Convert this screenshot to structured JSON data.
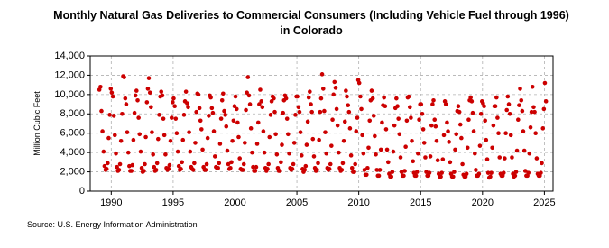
{
  "chart_data": {
    "type": "scatter",
    "title": [
      "Monthly Natural Gas Deliveries to Commercial Consumers (Including Vehicle Fuel through 1996)",
      "in Colorado"
    ],
    "y_label": "Million Cubic Feet",
    "source": "Source: U.S. Energy Information Administration",
    "color": "#cc0000",
    "grid": true,
    "xlim": [
      1988.3,
      2025.7
    ],
    "xticks": [
      1990,
      1995,
      2000,
      2005,
      2010,
      2015,
      2020,
      2025
    ],
    "ylim": [
      0,
      14000
    ],
    "yticks": [
      {
        "value": 0,
        "label": "0"
      },
      {
        "value": 2000,
        "label": "2,000"
      },
      {
        "value": 4000,
        "label": "4,000"
      },
      {
        "value": 6000,
        "label": "6,000"
      },
      {
        "value": 8000,
        "label": "8,000"
      },
      {
        "value": 10000,
        "label": "10,000"
      },
      {
        "value": 12000,
        "label": "12,000"
      },
      {
        "value": 14000,
        "label": "14,000"
      }
    ],
    "x": [
      1989.04,
      1989.13,
      1989.21,
      1989.29,
      1989.38,
      1989.46,
      1989.54,
      1989.63,
      1989.71,
      1989.79,
      1989.88,
      1989.96,
      1990.04,
      1990.13,
      1990.21,
      1990.29,
      1990.38,
      1990.46,
      1990.54,
      1990.63,
      1990.71,
      1990.79,
      1990.88,
      1990.96,
      1991.04,
      1991.13,
      1991.21,
      1991.29,
      1991.38,
      1991.46,
      1991.54,
      1991.63,
      1991.71,
      1991.79,
      1991.88,
      1991.96,
      1992.04,
      1992.13,
      1992.21,
      1992.29,
      1992.38,
      1992.46,
      1992.54,
      1992.63,
      1992.71,
      1992.79,
      1992.88,
      1992.96,
      1993.04,
      1993.13,
      1993.21,
      1993.29,
      1993.38,
      1993.46,
      1993.54,
      1993.63,
      1993.71,
      1993.79,
      1993.88,
      1993.96,
      1994.04,
      1994.13,
      1994.21,
      1994.29,
      1994.38,
      1994.46,
      1994.54,
      1994.63,
      1994.71,
      1994.79,
      1994.88,
      1994.96,
      1995.04,
      1995.13,
      1995.21,
      1995.29,
      1995.38,
      1995.46,
      1995.54,
      1995.63,
      1995.71,
      1995.79,
      1995.88,
      1995.96,
      1996.04,
      1996.13,
      1996.21,
      1996.29,
      1996.38,
      1996.46,
      1996.54,
      1996.63,
      1996.71,
      1996.79,
      1996.88,
      1996.96,
      1997.04,
      1997.13,
      1997.21,
      1997.29,
      1997.38,
      1997.46,
      1997.54,
      1997.63,
      1997.71,
      1997.79,
      1997.88,
      1997.96,
      1998.04,
      1998.13,
      1998.21,
      1998.29,
      1998.38,
      1998.46,
      1998.54,
      1998.63,
      1998.71,
      1998.79,
      1998.88,
      1998.96,
      1999.04,
      1999.13,
      1999.21,
      1999.29,
      1999.38,
      1999.46,
      1999.54,
      1999.63,
      1999.71,
      1999.79,
      1999.88,
      1999.96,
      2000.04,
      2000.13,
      2000.21,
      2000.29,
      2000.38,
      2000.46,
      2000.54,
      2000.63,
      2000.71,
      2000.79,
      2000.88,
      2000.96,
      2001.04,
      2001.13,
      2001.21,
      2001.29,
      2001.38,
      2001.46,
      2001.54,
      2001.63,
      2001.71,
      2001.79,
      2001.88,
      2001.96,
      2002.04,
      2002.13,
      2002.21,
      2002.29,
      2002.38,
      2002.46,
      2002.54,
      2002.63,
      2002.71,
      2002.79,
      2002.88,
      2002.96,
      2003.04,
      2003.13,
      2003.21,
      2003.29,
      2003.38,
      2003.46,
      2003.54,
      2003.63,
      2003.71,
      2003.79,
      2003.88,
      2003.96,
      2004.04,
      2004.13,
      2004.21,
      2004.29,
      2004.38,
      2004.46,
      2004.54,
      2004.63,
      2004.71,
      2004.79,
      2004.88,
      2004.96,
      2005.04,
      2005.13,
      2005.21,
      2005.29,
      2005.38,
      2005.46,
      2005.54,
      2005.63,
      2005.71,
      2005.79,
      2005.88,
      2005.96,
      2006.04,
      2006.13,
      2006.21,
      2006.29,
      2006.38,
      2006.46,
      2006.54,
      2006.63,
      2006.71,
      2006.79,
      2006.88,
      2006.96,
      2007.04,
      2007.13,
      2007.21,
      2007.29,
      2007.38,
      2007.46,
      2007.54,
      2007.63,
      2007.71,
      2007.79,
      2007.88,
      2007.96,
      2008.04,
      2008.13,
      2008.21,
      2008.29,
      2008.38,
      2008.46,
      2008.54,
      2008.63,
      2008.71,
      2008.79,
      2008.88,
      2008.96,
      2009.04,
      2009.13,
      2009.21,
      2009.29,
      2009.38,
      2009.46,
      2009.54,
      2009.63,
      2009.71,
      2009.79,
      2009.88,
      2009.96,
      2010.04,
      2010.13,
      2010.21,
      2010.29,
      2010.38,
      2010.46,
      2010.54,
      2010.63,
      2010.71,
      2010.79,
      2010.88,
      2010.96,
      2011.04,
      2011.13,
      2011.21,
      2011.29,
      2011.38,
      2011.46,
      2011.54,
      2011.63,
      2011.71,
      2011.79,
      2011.88,
      2011.96,
      2012.04,
      2012.13,
      2012.21,
      2012.29,
      2012.38,
      2012.46,
      2012.54,
      2012.63,
      2012.71,
      2012.79,
      2012.88,
      2012.96,
      2013.04,
      2013.13,
      2013.21,
      2013.29,
      2013.38,
      2013.46,
      2013.54,
      2013.63,
      2013.71,
      2013.79,
      2013.88,
      2013.96,
      2014.04,
      2014.13,
      2014.21,
      2014.29,
      2014.38,
      2014.46,
      2014.54,
      2014.63,
      2014.71,
      2014.79,
      2014.88,
      2014.96,
      2015.04,
      2015.13,
      2015.21,
      2015.29,
      2015.38,
      2015.46,
      2015.54,
      2015.63,
      2015.71,
      2015.79,
      2015.88,
      2015.96,
      2016.04,
      2016.13,
      2016.21,
      2016.29,
      2016.38,
      2016.46,
      2016.54,
      2016.63,
      2016.71,
      2016.79,
      2016.88,
      2016.96,
      2017.04,
      2017.13,
      2017.21,
      2017.29,
      2017.38,
      2017.46,
      2017.54,
      2017.63,
      2017.71,
      2017.79,
      2017.88,
      2017.96,
      2018.04,
      2018.13,
      2018.21,
      2018.29,
      2018.38,
      2018.46,
      2018.54,
      2018.63,
      2018.71,
      2018.79,
      2018.88,
      2018.96,
      2019.04,
      2019.13,
      2019.21,
      2019.29,
      2019.38,
      2019.46,
      2019.54,
      2019.63,
      2019.71,
      2019.79,
      2019.88,
      2019.96,
      2020.04,
      2020.13,
      2020.21,
      2020.29,
      2020.38,
      2020.46,
      2020.54,
      2020.63,
      2020.71,
      2020.79,
      2020.88,
      2020.96,
      2021.04,
      2021.13,
      2021.21,
      2021.29,
      2021.38,
      2021.46,
      2021.54,
      2021.63,
      2021.71,
      2021.79,
      2021.88,
      2021.96,
      2022.04,
      2022.13,
      2022.21,
      2022.29,
      2022.38,
      2022.46,
      2022.54,
      2022.63,
      2022.71,
      2022.79,
      2022.88,
      2022.96,
      2023.04,
      2023.13,
      2023.21,
      2023.29,
      2023.38,
      2023.46,
      2023.54,
      2023.63,
      2023.71,
      2023.79,
      2023.88,
      2023.96,
      2024.04,
      2024.13,
      2024.21,
      2024.29,
      2024.38,
      2024.46,
      2024.54,
      2024.63,
      2024.71,
      2024.79,
      2024.88,
      2024.96,
      2025.04,
      2025.13
    ],
    "values": [
      10500,
      10800,
      8300,
      6200,
      4100,
      2600,
      2200,
      2300,
      2900,
      5500,
      7900,
      10600,
      10200,
      9800,
      7800,
      5800,
      3900,
      2500,
      2100,
      2200,
      2800,
      5200,
      8000,
      11900,
      11800,
      9600,
      9000,
      6100,
      4000,
      2600,
      2100,
      2100,
      2700,
      5300,
      8100,
      9900,
      10400,
      9400,
      7600,
      5900,
      4100,
      2400,
      2000,
      2100,
      2800,
      5600,
      9200,
      10600,
      11700,
      10200,
      8700,
      6100,
      3800,
      2500,
      2100,
      2200,
      2900,
      5400,
      7900,
      9800,
      10300,
      9900,
      7500,
      5800,
      3800,
      2400,
      2200,
      2300,
      2700,
      5200,
      7600,
      9200,
      9600,
      8800,
      7500,
      6000,
      4100,
      2600,
      2200,
      2300,
      3000,
      5300,
      7900,
      9300,
      10300,
      9100,
      8700,
      6100,
      4100,
      2500,
      2300,
      2200,
      2900,
      5000,
      8200,
      10100,
      10000,
      8600,
      7300,
      6400,
      4300,
      2500,
      2200,
      2200,
      2800,
      5500,
      7800,
      9900,
      9700,
      8600,
      8100,
      6200,
      3600,
      2500,
      2400,
      2400,
      2900,
      4900,
      7500,
      9400,
      10100,
      8300,
      7900,
      6700,
      4200,
      2800,
      2300,
      2400,
      3000,
      5200,
      7300,
      8800,
      9800,
      8500,
      7100,
      5600,
      3400,
      2300,
      2200,
      2200,
      2800,
      5000,
      8400,
      10200,
      11800,
      9900,
      9000,
      6500,
      4000,
      2500,
      2100,
      2100,
      2500,
      4900,
      7100,
      9000,
      10500,
      9300,
      8700,
      6200,
      4000,
      2400,
      2100,
      2300,
      2800,
      5600,
      7900,
      9300,
      9800,
      9600,
      8200,
      5900,
      3800,
      2400,
      2100,
      2100,
      3000,
      4800,
      8100,
      9400,
      9900,
      9600,
      7500,
      5900,
      3900,
      2400,
      2200,
      2300,
      2800,
      5000,
      7900,
      9800,
      9800,
      8700,
      8200,
      6100,
      3700,
      2300,
      2000,
      2200,
      2600,
      4800,
      7200,
      9700,
      10300,
      9000,
      8200,
      5400,
      3600,
      2400,
      2100,
      2200,
      2900,
      5300,
      8200,
      9600,
      12100,
      10600,
      8300,
      6100,
      3900,
      2400,
      2200,
      2300,
      2800,
      4700,
      7400,
      10000,
      11300,
      10700,
      8500,
      6800,
      4000,
      2400,
      2100,
      2200,
      2900,
      5200,
      7200,
      10400,
      9800,
      8900,
      8200,
      6500,
      3700,
      2400,
      2000,
      2000,
      2800,
      6200,
      7600,
      11500,
      11200,
      9800,
      8500,
      5800,
      3900,
      2200,
      1700,
      1700,
      2400,
      4500,
      7300,
      9400,
      10400,
      9600,
      7800,
      5700,
      3800,
      2200,
      1600,
      1600,
      2200,
      4300,
      7100,
      8900,
      9700,
      8800,
      6400,
      4300,
      3000,
      1800,
      1500,
      1500,
      2000,
      4100,
      6800,
      8600,
      9600,
      8800,
      7500,
      5900,
      3500,
      2000,
      1600,
      1600,
      2100,
      4600,
      7300,
      9700,
      9800,
      8700,
      7600,
      5200,
      3100,
      1900,
      1600,
      1600,
      2000,
      3900,
      7400,
      9000,
      9000,
      8000,
      6400,
      5000,
      3500,
      2000,
      1600,
      1600,
      1900,
      3600,
      6800,
      9000,
      9400,
      7400,
      6700,
      5200,
      3200,
      1800,
      1500,
      1500,
      1900,
      3300,
      5800,
      9300,
      9000,
      7100,
      6200,
      5100,
      3000,
      1800,
      1500,
      1500,
      2000,
      4300,
      5900,
      8300,
      8800,
      8200,
      6900,
      5500,
      2800,
      1700,
      1500,
      1500,
      1800,
      4500,
      7400,
      9400,
      9700,
      9300,
      8100,
      6200,
      3900,
      2200,
      1600,
      1600,
      1800,
      4700,
      8000,
      9300,
      9100,
      8800,
      7300,
      5300,
      3300,
      1900,
      1400,
      1500,
      1900,
      4500,
      6800,
      8800,
      8800,
      9700,
      7600,
      6000,
      3500,
      1800,
      1600,
      1600,
      1900,
      3400,
      6000,
      8400,
      9800,
      9000,
      8000,
      5800,
      3500,
      1800,
      1500,
      1600,
      2000,
      4200,
      7400,
      8900,
      10600,
      9400,
      8300,
      6200,
      4200,
      2100,
      1600,
      1600,
      1900,
      3900,
      6600,
      8200,
      10800,
      8700,
      8200,
      6000,
      3400,
      1800,
      1600,
      1600,
      1900,
      2900,
      6500,
      8500,
      11200,
      9300
    ]
  }
}
